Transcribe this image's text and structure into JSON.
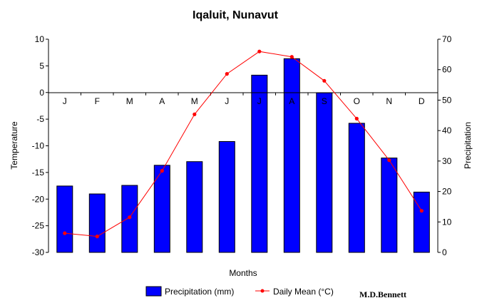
{
  "chart_data": {
    "type": "bar",
    "title": "Iqaluit, Nunavut",
    "xlabel": "Months",
    "ylabel_left": "Temperature",
    "ylabel_right": "Precipitation",
    "categories": [
      "J",
      "F",
      "M",
      "A",
      "M",
      "J",
      "J",
      "A",
      "S",
      "O",
      "N",
      "D"
    ],
    "y_left_ticks": [
      "10",
      "5",
      "0",
      "-5",
      "-10",
      "-15",
      "-20",
      "-25",
      "-30"
    ],
    "y_right_ticks": [
      "70",
      "60",
      "50",
      "40",
      "30",
      "20",
      "10",
      "0"
    ],
    "ylim_left": [
      -30,
      10
    ],
    "ylim_right": [
      0,
      70
    ],
    "grid": false,
    "legend_position": "bottom",
    "series": [
      {
        "name": "Precipitation (mm)",
        "type": "bar",
        "axis": "right",
        "color": "#0000ff",
        "values": [
          21.8,
          19.2,
          22.0,
          28.6,
          29.8,
          36.4,
          58.2,
          63.6,
          52.4,
          42.4,
          31.0,
          19.8
        ]
      },
      {
        "name": "Daily Mean (°C)",
        "type": "line",
        "axis": "left",
        "color": "#ff0000",
        "values": [
          -26.4,
          -27.0,
          -23.4,
          -14.7,
          -4.1,
          3.5,
          7.7,
          6.7,
          2.2,
          -4.9,
          -12.7,
          -22.2
        ]
      }
    ],
    "credit": "M.D.Bennett"
  }
}
